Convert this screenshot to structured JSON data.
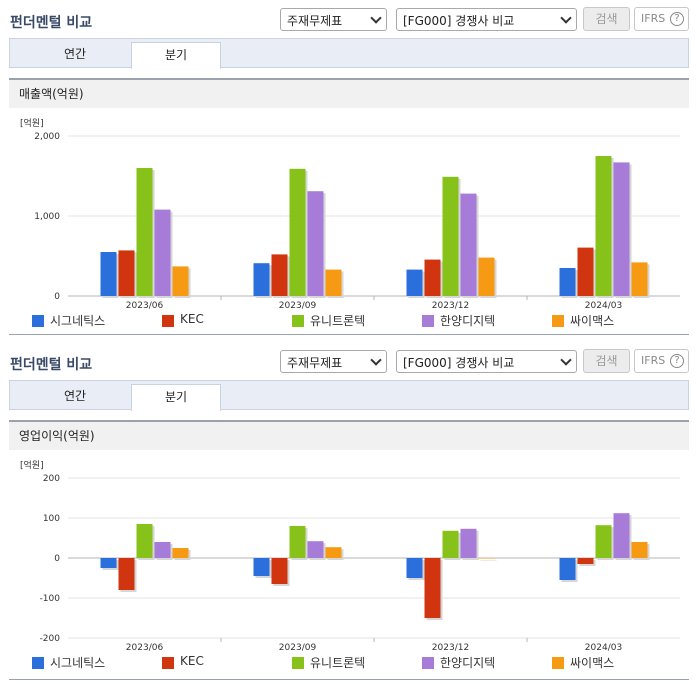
{
  "panels": [
    {
      "title": "펀더멘털 비교",
      "select1": "주재무제표",
      "select2": "[FG000] 경쟁사 비교",
      "search_label": "검색",
      "ifrs_label": "IFRS",
      "ifrs_help": "?",
      "tabs": [
        "연간",
        "분기"
      ],
      "active_tab": 1,
      "section_title": "매출액(억원)"
    },
    {
      "title": "펀더멘털 비교",
      "select1": "주재무제표",
      "select2": "[FG000] 경쟁사 비교",
      "search_label": "검색",
      "ifrs_label": "IFRS",
      "ifrs_help": "?",
      "tabs": [
        "연간",
        "분기"
      ],
      "active_tab": 1,
      "section_title": "영업이익(억원)"
    }
  ],
  "colors": {
    "시그네틱스": "#2a6fdb",
    "KEC": "#d0350f",
    "유니트론텍": "#87c21b",
    "한양디지텍": "#a77bd8",
    "싸이맥스": "#f59a12"
  },
  "chart_data": [
    {
      "type": "bar",
      "title": "매출액(억원)",
      "unit_label": "[억원]",
      "categories": [
        "2023/06",
        "2023/09",
        "2023/12",
        "2024/03"
      ],
      "ylim": [
        0,
        2000
      ],
      "yticks": [
        0,
        1000,
        2000
      ],
      "ytick_labels": [
        "0",
        "1,000",
        "2,000"
      ],
      "legend_position": "bottom",
      "series": [
        {
          "name": "시그네틱스",
          "values": [
            550,
            410,
            330,
            350
          ]
        },
        {
          "name": "KEC",
          "values": [
            570,
            520,
            455,
            605
          ]
        },
        {
          "name": "유니트론텍",
          "values": [
            1600,
            1590,
            1490,
            1750
          ]
        },
        {
          "name": "한양디지텍",
          "values": [
            1080,
            1310,
            1280,
            1670
          ]
        },
        {
          "name": "싸이맥스",
          "values": [
            370,
            330,
            480,
            420
          ]
        }
      ]
    },
    {
      "type": "bar",
      "title": "영업이익(억원)",
      "unit_label": "[억원]",
      "categories": [
        "2023/06",
        "2023/09",
        "2023/12",
        "2024/03"
      ],
      "ylim": [
        -200,
        200
      ],
      "yticks": [
        -200,
        -100,
        0,
        100,
        200
      ],
      "ytick_labels": [
        "-200",
        "-100",
        "0",
        "100",
        "200"
      ],
      "legend_position": "bottom",
      "series": [
        {
          "name": "시그네틱스",
          "values": [
            -25,
            -45,
            -50,
            -55
          ]
        },
        {
          "name": "KEC",
          "values": [
            -80,
            -65,
            -150,
            -15
          ]
        },
        {
          "name": "유니트론텍",
          "values": [
            85,
            80,
            68,
            82
          ]
        },
        {
          "name": "한양디지텍",
          "values": [
            40,
            42,
            73,
            112
          ]
        },
        {
          "name": "싸이맥스",
          "values": [
            25,
            27,
            0,
            40
          ]
        }
      ]
    }
  ]
}
